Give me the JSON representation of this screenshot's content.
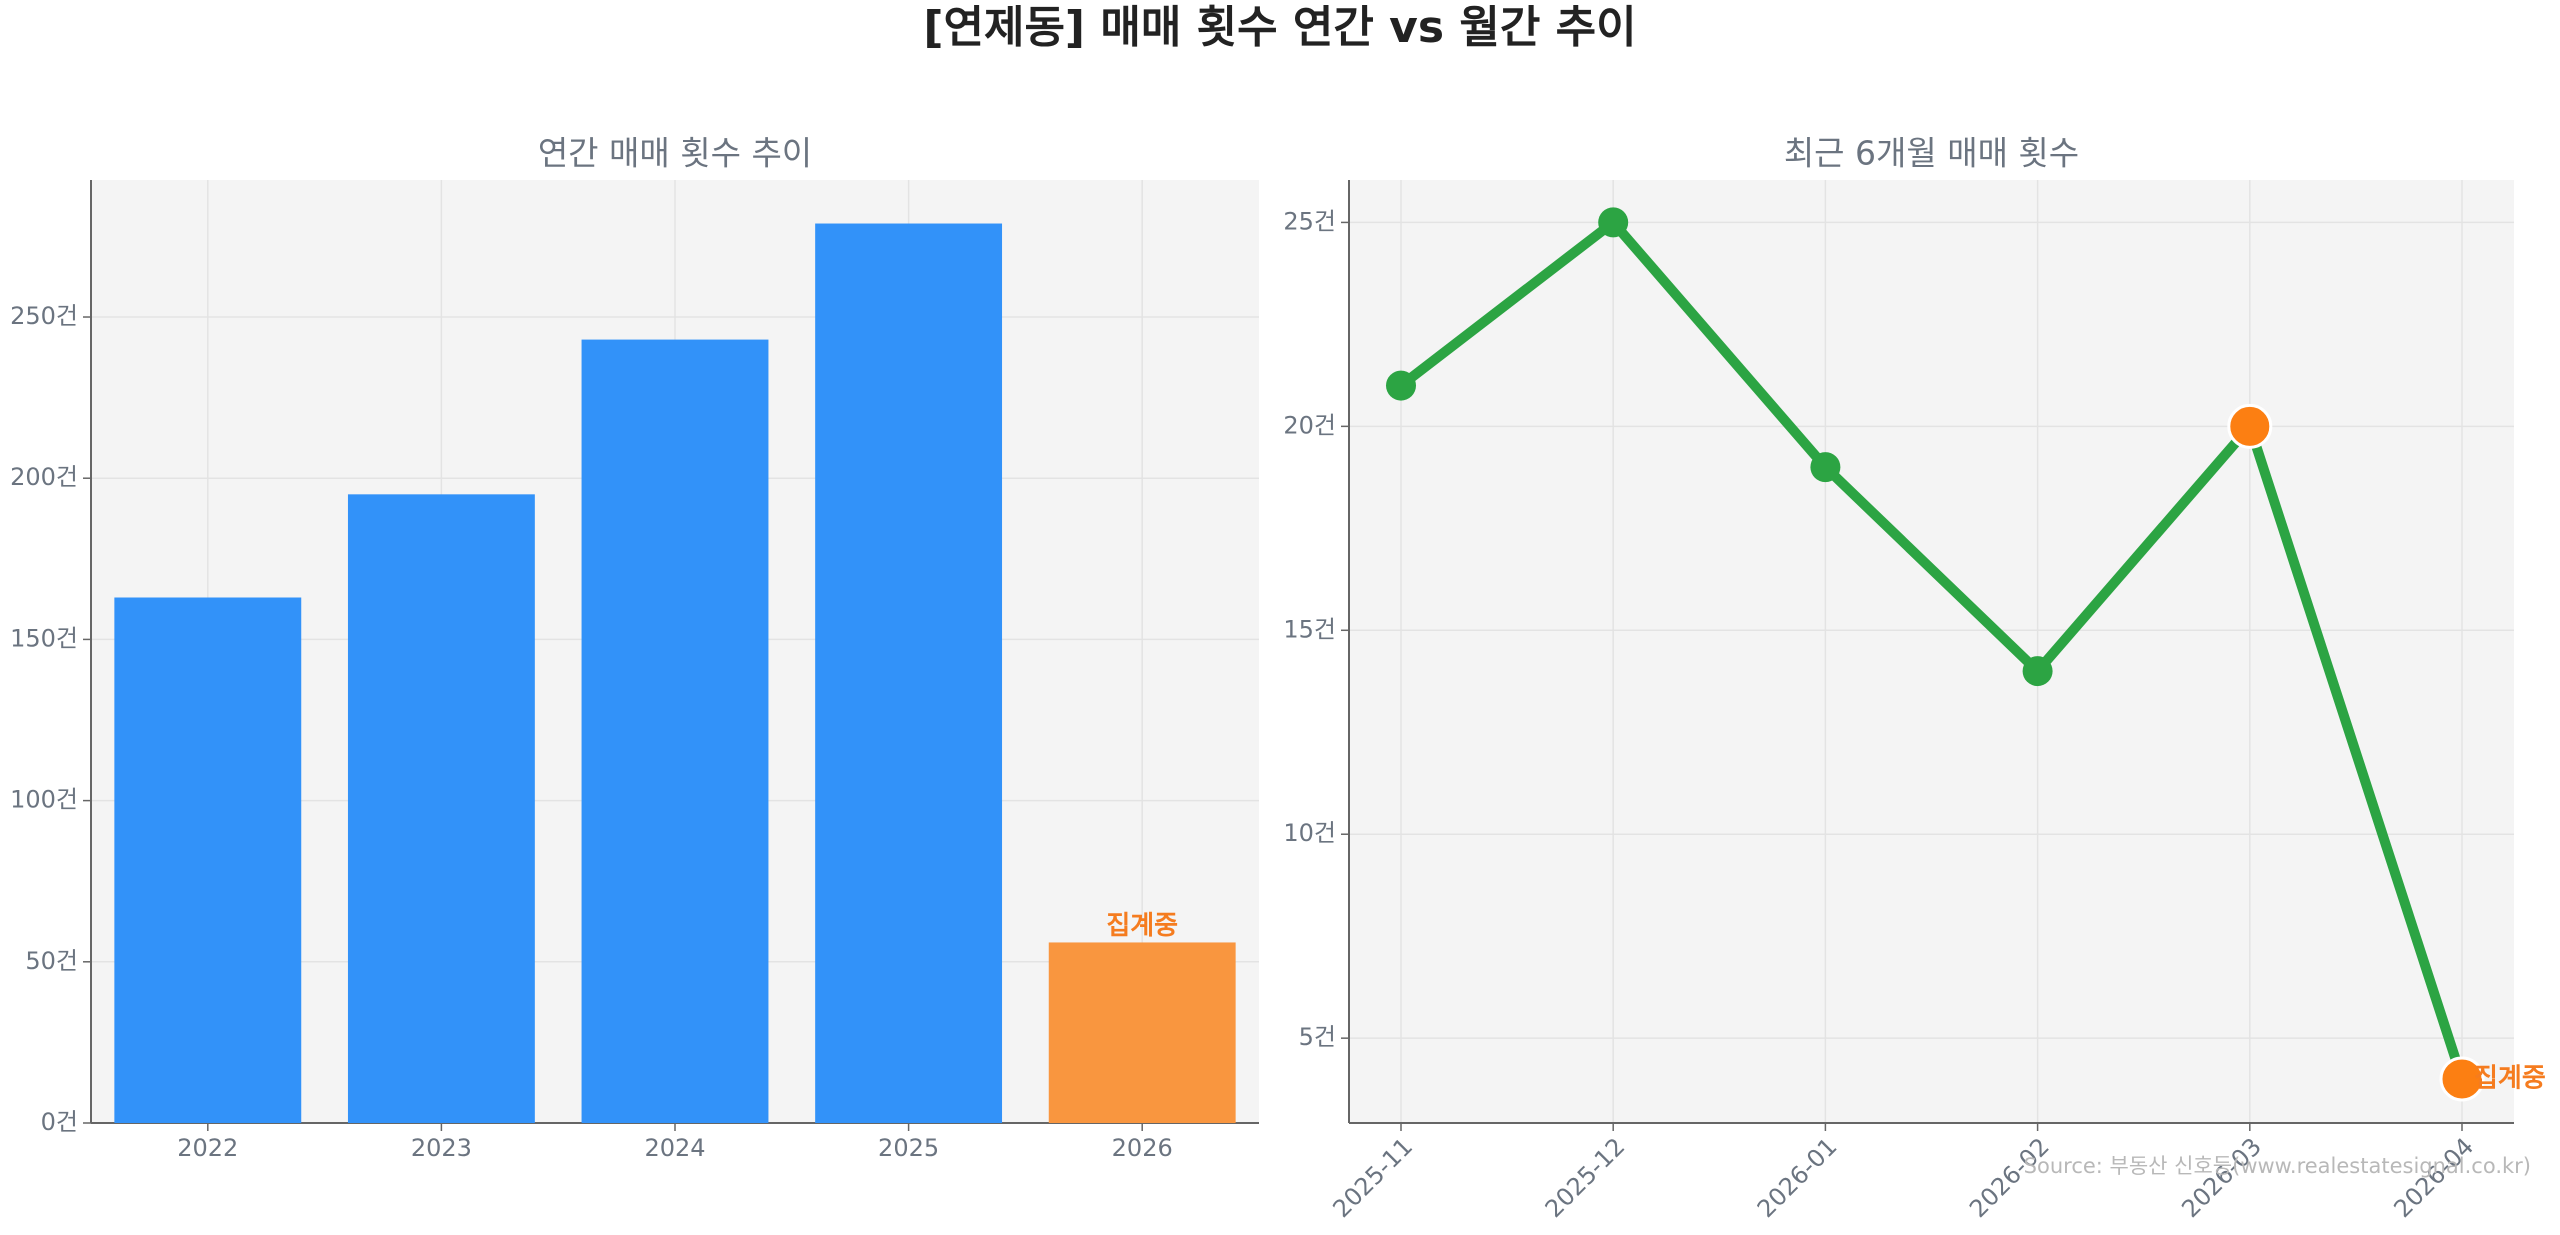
{
  "title": "[연제동] 매매 횟수 연간 vs 월간 추이",
  "source": "Source: 부동산 신호등(www.realestatesignal.co.kr)",
  "chart_data": [
    {
      "type": "bar",
      "title": "연간 매매 횟수 추이",
      "categories": [
        "2022",
        "2023",
        "2024",
        "2025",
        "2026"
      ],
      "values": [
        163,
        195,
        243,
        279,
        56
      ],
      "colors": [
        "#3292f9",
        "#3292f9",
        "#3292f9",
        "#3292f9",
        "#f9963f"
      ],
      "ylim": [
        0,
        292.5
      ],
      "yticks": [
        {
          "value": 0,
          "label": "0건"
        },
        {
          "value": 50,
          "label": "50건"
        },
        {
          "value": 100,
          "label": "100건"
        },
        {
          "value": 150,
          "label": "150건"
        },
        {
          "value": 200,
          "label": "200건"
        },
        {
          "value": 250,
          "label": "250건"
        }
      ],
      "grid": true,
      "annotations": [
        {
          "text": "집계중",
          "category": "2026",
          "color": "#f57c1f"
        }
      ]
    },
    {
      "type": "line",
      "title": "최근 6개월 매매 횟수",
      "categories": [
        "2025-11",
        "2025-12",
        "2026-01",
        "2026-02",
        "2026-03",
        "2026-04"
      ],
      "values": [
        21,
        25,
        19,
        14,
        20,
        4
      ],
      "color": "#2ca443",
      "marker_colors": [
        "#2ca443",
        "#2ca443",
        "#2ca443",
        "#2ca443",
        "#fc7f12",
        "#fc7f12"
      ],
      "ylim": [
        2.92,
        26.04
      ],
      "yticks": [
        {
          "value": 5,
          "label": "5건"
        },
        {
          "value": 10,
          "label": "10건"
        },
        {
          "value": 15,
          "label": "15건"
        },
        {
          "value": 20,
          "label": "20건"
        },
        {
          "value": 25,
          "label": "25건"
        }
      ],
      "grid": true,
      "annotations": [
        {
          "text": "집계중",
          "category": "2026-04",
          "color": "#f57c1f"
        }
      ]
    }
  ]
}
